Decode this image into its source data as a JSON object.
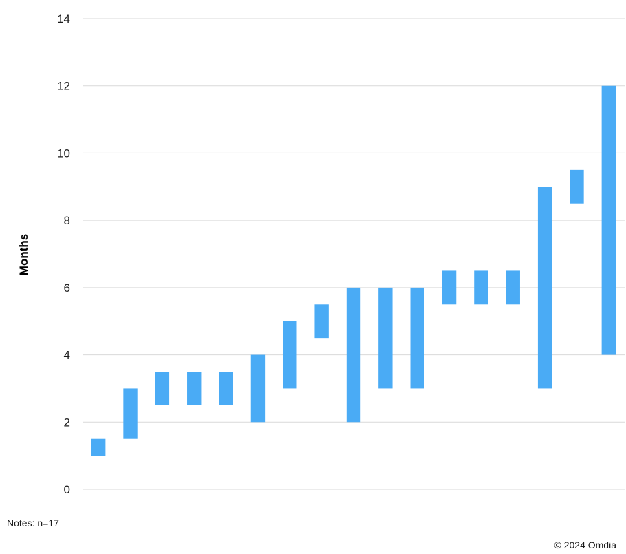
{
  "chart_data": {
    "type": "bar",
    "subtype": "floating-range",
    "ylabel": "Months",
    "ylim": [
      0,
      14
    ],
    "yticks": [
      0,
      2,
      4,
      6,
      8,
      10,
      12,
      14
    ],
    "grid": true,
    "categories_count": 17,
    "ranges": [
      [
        1,
        1.5
      ],
      [
        1.5,
        3
      ],
      [
        2.5,
        3.5
      ],
      [
        2.5,
        3.5
      ],
      [
        2.5,
        3.5
      ],
      [
        2,
        4
      ],
      [
        3,
        5
      ],
      [
        4.5,
        5.5
      ],
      [
        2,
        6
      ],
      [
        3,
        6
      ],
      [
        3,
        6
      ],
      [
        5.5,
        6.5
      ],
      [
        5.5,
        6.5
      ],
      [
        5.5,
        6.5
      ],
      [
        3,
        9
      ],
      [
        8.5,
        9.5
      ],
      [
        4,
        12
      ]
    ],
    "bar_color": "#4AABF5",
    "grid_color": "#D9D9D9"
  },
  "footer": {
    "notes": "Notes: n=17",
    "copyright": "© 2024 Omdia"
  }
}
